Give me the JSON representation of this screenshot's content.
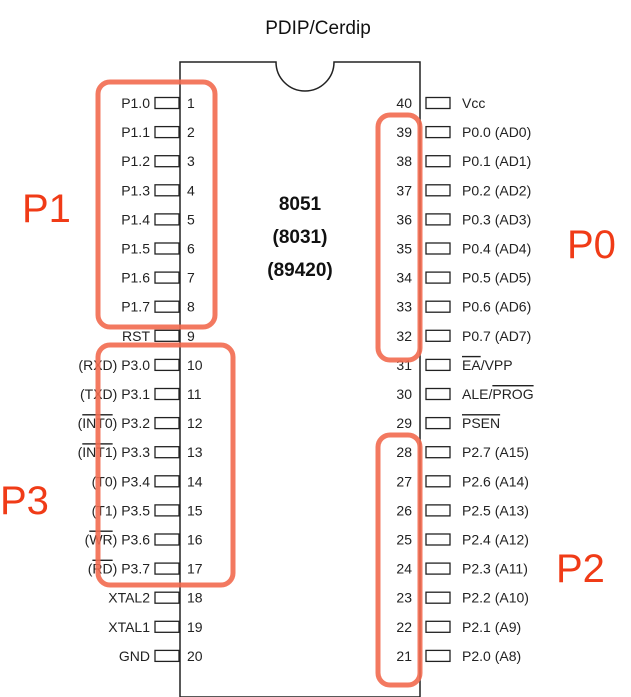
{
  "package": "PDIP/Cerdip",
  "chip_lines": [
    "8051",
    "(8031)",
    "(89420)"
  ],
  "left_pins": [
    {
      "num": "1",
      "parts": [
        {
          "t": "P1.0"
        }
      ]
    },
    {
      "num": "2",
      "parts": [
        {
          "t": "P1.1"
        }
      ]
    },
    {
      "num": "3",
      "parts": [
        {
          "t": "P1.2"
        }
      ]
    },
    {
      "num": "4",
      "parts": [
        {
          "t": "P1.3"
        }
      ]
    },
    {
      "num": "5",
      "parts": [
        {
          "t": "P1.4"
        }
      ]
    },
    {
      "num": "6",
      "parts": [
        {
          "t": "P1.5"
        }
      ]
    },
    {
      "num": "7",
      "parts": [
        {
          "t": "P1.6"
        }
      ]
    },
    {
      "num": "8",
      "parts": [
        {
          "t": "P1.7"
        }
      ]
    },
    {
      "num": "9",
      "parts": [
        {
          "t": "RST"
        }
      ]
    },
    {
      "num": "10",
      "parts": [
        {
          "t": "(RXD) P3.0"
        }
      ]
    },
    {
      "num": "11",
      "parts": [
        {
          "t": "(TXD) P3.1"
        }
      ]
    },
    {
      "num": "12",
      "parts": [
        {
          "t": "("
        },
        {
          "t": "INT0",
          "over": true
        },
        {
          "t": ") P3.2"
        }
      ]
    },
    {
      "num": "13",
      "parts": [
        {
          "t": "("
        },
        {
          "t": "INT1",
          "over": true
        },
        {
          "t": ") P3.3"
        }
      ]
    },
    {
      "num": "14",
      "parts": [
        {
          "t": "(T0) P3.4"
        }
      ]
    },
    {
      "num": "15",
      "parts": [
        {
          "t": "(T1) P3.5"
        }
      ]
    },
    {
      "num": "16",
      "parts": [
        {
          "t": "("
        },
        {
          "t": "WR",
          "over": true
        },
        {
          "t": ") P3.6"
        }
      ]
    },
    {
      "num": "17",
      "parts": [
        {
          "t": "("
        },
        {
          "t": "RD",
          "over": true
        },
        {
          "t": ") P3.7"
        }
      ]
    },
    {
      "num": "18",
      "parts": [
        {
          "t": "XTAL2"
        }
      ]
    },
    {
      "num": "19",
      "parts": [
        {
          "t": "XTAL1"
        }
      ]
    },
    {
      "num": "20",
      "parts": [
        {
          "t": "GND"
        }
      ]
    }
  ],
  "right_pins": [
    {
      "num": "40",
      "parts": [
        {
          "t": "Vcc"
        }
      ]
    },
    {
      "num": "39",
      "parts": [
        {
          "t": "P0.0 (AD0)"
        }
      ]
    },
    {
      "num": "38",
      "parts": [
        {
          "t": "P0.1 (AD1)"
        }
      ]
    },
    {
      "num": "37",
      "parts": [
        {
          "t": "P0.2 (AD2)"
        }
      ]
    },
    {
      "num": "36",
      "parts": [
        {
          "t": "P0.3 (AD3)"
        }
      ]
    },
    {
      "num": "35",
      "parts": [
        {
          "t": "P0.4 (AD4)"
        }
      ]
    },
    {
      "num": "34",
      "parts": [
        {
          "t": "P0.5 (AD5)"
        }
      ]
    },
    {
      "num": "33",
      "parts": [
        {
          "t": "P0.6 (AD6)"
        }
      ]
    },
    {
      "num": "32",
      "parts": [
        {
          "t": "P0.7 (AD7)"
        }
      ]
    },
    {
      "num": "31",
      "parts": [
        {
          "t": "EA",
          "over": true
        },
        {
          "t": "/VPP"
        }
      ]
    },
    {
      "num": "30",
      "parts": [
        {
          "t": "ALE/"
        },
        {
          "t": "PROG",
          "over": true
        }
      ]
    },
    {
      "num": "29",
      "parts": [
        {
          "t": "PSEN",
          "over": true
        }
      ]
    },
    {
      "num": "28",
      "parts": [
        {
          "t": "P2.7 (A15)"
        }
      ]
    },
    {
      "num": "27",
      "parts": [
        {
          "t": "P2.6 (A14)"
        }
      ]
    },
    {
      "num": "26",
      "parts": [
        {
          "t": "P2.5 (A13)"
        }
      ]
    },
    {
      "num": "25",
      "parts": [
        {
          "t": "P2.4 (A12)"
        }
      ]
    },
    {
      "num": "24",
      "parts": [
        {
          "t": "P2.3 (A11)"
        }
      ]
    },
    {
      "num": "23",
      "parts": [
        {
          "t": "P2.2 (A10)"
        }
      ]
    },
    {
      "num": "22",
      "parts": [
        {
          "t": "P2.1 (A9)"
        }
      ]
    },
    {
      "num": "21",
      "parts": [
        {
          "t": "P2.0 (A8)"
        }
      ]
    }
  ],
  "port_labels": {
    "p1": "P1",
    "p3": "P3",
    "p0": "P0",
    "p2": "P2"
  },
  "colors": {
    "highlight": "#f26a4f",
    "port_text": "#f03b17",
    "outline": "#222222"
  }
}
